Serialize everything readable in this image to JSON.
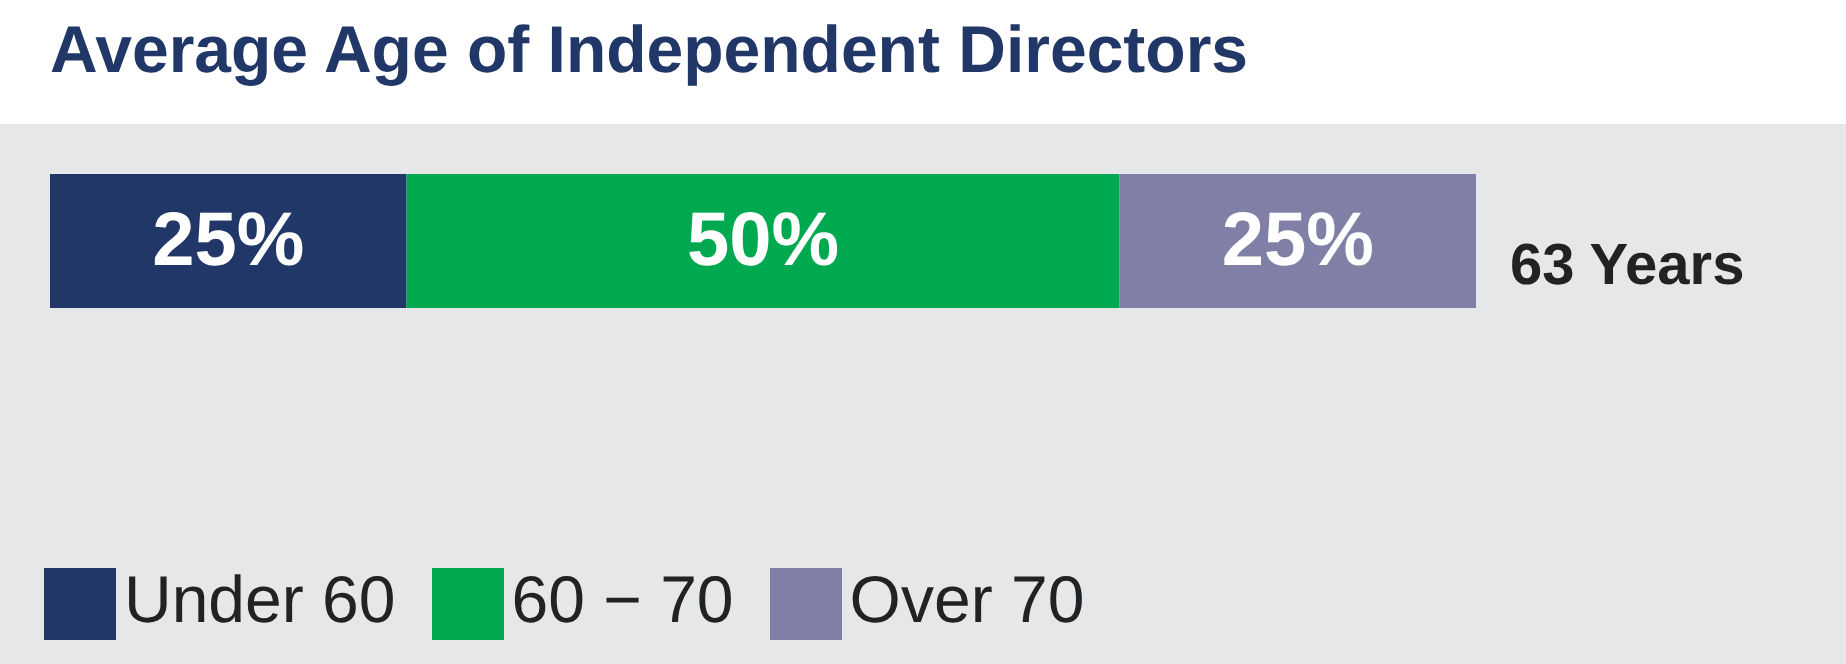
{
  "chart_data": {
    "type": "bar",
    "title": "Average Age of Independent Directors",
    "orientation": "horizontal",
    "stacked": true,
    "categories": [
      null
    ],
    "series": [
      {
        "name": "Under 60",
        "color": "#203768",
        "values": [
          25
        ],
        "value_labels": [
          "25%"
        ]
      },
      {
        "name": "60 − 70",
        "color": "#00a84f",
        "values": [
          50
        ],
        "value_labels": [
          "50%"
        ]
      },
      {
        "name": "Over 70",
        "color": "#8080a6",
        "values": [
          25
        ],
        "value_labels": [
          "25%"
        ]
      }
    ],
    "annotations": [
      "63 Years"
    ],
    "legend": "bottom"
  }
}
